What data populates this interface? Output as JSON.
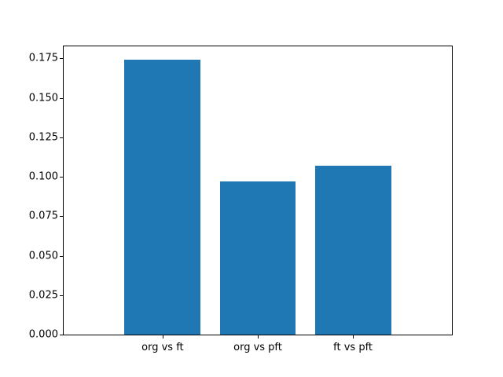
{
  "chart_data": {
    "type": "bar",
    "title": "",
    "xlabel": "",
    "ylabel": "",
    "categories": [
      "org vs ft",
      "org vs pft",
      "ft vs pft"
    ],
    "values": [
      0.174,
      0.097,
      0.107
    ],
    "bar_color": "#1f77b4",
    "ylim": [
      0,
      0.1827
    ],
    "yticks": [
      0.0,
      0.025,
      0.05,
      0.075,
      0.1,
      0.125,
      0.15,
      0.175
    ],
    "ytick_labels": [
      "0.000",
      "0.025",
      "0.050",
      "0.075",
      "0.100",
      "0.125",
      "0.150",
      "0.175"
    ],
    "grid": false,
    "legend": false,
    "bar_width_fraction": 0.8,
    "x_margin_units": 0.54
  }
}
